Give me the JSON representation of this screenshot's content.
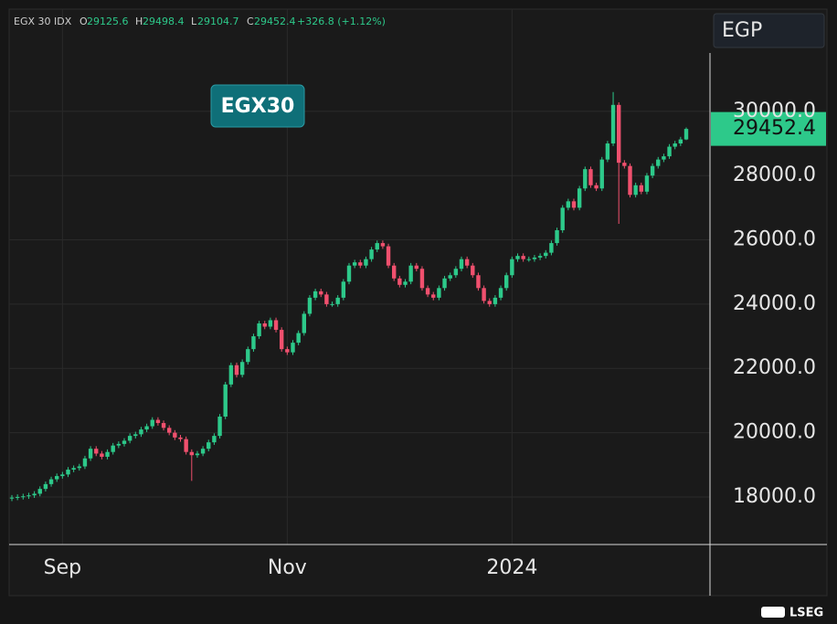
{
  "chart_data": {
    "type": "candlestick",
    "ticker": "EGX 30 IDX",
    "legend_keys": [
      "O",
      "H",
      "L",
      "C"
    ],
    "change": "+326.8 (+1.12%)",
    "currency": "EGP",
    "badge": "EGX30",
    "source": "LSEG",
    "up_color": "#2dc98a",
    "down_color": "#f0506e",
    "categories": [
      null,
      null,
      null,
      null,
      null,
      null,
      null,
      null,
      null,
      "Sep",
      null,
      null,
      null,
      null,
      null,
      null,
      null,
      null,
      null,
      null,
      null,
      null,
      null,
      null,
      null,
      null,
      null,
      null,
      null,
      null,
      null,
      null,
      null,
      null,
      null,
      null,
      null,
      null,
      null,
      null,
      null,
      null,
      null,
      null,
      null,
      null,
      null,
      null,
      null,
      "Nov",
      null,
      null,
      null,
      null,
      null,
      null,
      null,
      null,
      null,
      null,
      null,
      null,
      null,
      null,
      null,
      null,
      null,
      null,
      null,
      null,
      null,
      null,
      null,
      null,
      null,
      null,
      null,
      null,
      null,
      null,
      null,
      null,
      null,
      null,
      null,
      null,
      null,
      null,
      null,
      "2024",
      null,
      null,
      null,
      null,
      null,
      null,
      null,
      null,
      null,
      null,
      null,
      null,
      null,
      null,
      null,
      null,
      null,
      null,
      null,
      null,
      null,
      null,
      null,
      null,
      null,
      null,
      null,
      null,
      null,
      null,
      null
    ],
    "open": [
      17950,
      17980,
      18000,
      18020,
      18050,
      18100,
      18250,
      18400,
      18550,
      18650,
      18700,
      18850,
      18900,
      18950,
      19200,
      19500,
      19350,
      19250,
      19400,
      19600,
      19650,
      19750,
      19900,
      19950,
      20100,
      20200,
      20400,
      20300,
      20150,
      20000,
      19850,
      19800,
      19400,
      19300,
      19350,
      19500,
      19700,
      19900,
      20500,
      21500,
      22100,
      21800,
      22200,
      22600,
      23000,
      23400,
      23300,
      23500,
      23200,
      22600,
      22500,
      22800,
      23100,
      23700,
      24200,
      24400,
      24300,
      24000,
      24000,
      24200,
      24700,
      25200,
      25300,
      25200,
      25400,
      25700,
      25900,
      25800,
      25200,
      24800,
      24600,
      24700,
      25200,
      25100,
      24500,
      24300,
      24200,
      24500,
      24800,
      24900,
      25100,
      25400,
      25200,
      24900,
      24500,
      24100,
      24000,
      24200,
      24500,
      24900,
      25400,
      25500,
      25400,
      25400,
      25450,
      25500,
      25600,
      25900,
      26300,
      27000,
      27200,
      27000,
      27600,
      28200,
      27700,
      27600,
      28500,
      29000,
      30200,
      28400,
      28300,
      27400,
      27700,
      27500,
      28000,
      28300,
      28500,
      28600,
      28900,
      29000,
      29125.6
    ],
    "high": [
      18060,
      18080,
      18100,
      18130,
      18180,
      18330,
      18480,
      18630,
      18730,
      18780,
      18930,
      18980,
      19030,
      19280,
      19580,
      19580,
      19430,
      19480,
      19680,
      19730,
      19830,
      19980,
      20030,
      20180,
      20280,
      20480,
      20480,
      20380,
      20230,
      20080,
      19930,
      19880,
      19480,
      19430,
      19580,
      19780,
      19980,
      20580,
      21580,
      22180,
      22180,
      22280,
      22680,
      23080,
      23480,
      23480,
      23580,
      23580,
      23280,
      22680,
      22880,
      23180,
      23780,
      24280,
      24480,
      24480,
      24380,
      24080,
      24280,
      24780,
      25280,
      25380,
      25380,
      25480,
      25780,
      25980,
      25980,
      25880,
      25280,
      24880,
      24780,
      25280,
      25280,
      25180,
      24580,
      24380,
      24580,
      24880,
      24980,
      25180,
      25480,
      25480,
      25280,
      24980,
      24580,
      24180,
      24280,
      24580,
      24980,
      25480,
      25580,
      25580,
      25480,
      25530,
      25580,
      25680,
      25980,
      26380,
      27080,
      27280,
      27280,
      27680,
      28280,
      28280,
      27780,
      28580,
      29080,
      30600,
      30280,
      28480,
      28380,
      27780,
      27780,
      28080,
      28380,
      28580,
      28680,
      28980,
      29080,
      29206,
      29498.4
    ],
    "low": [
      17870,
      17900,
      17920,
      17940,
      17970,
      18020,
      18170,
      18320,
      18470,
      18570,
      18620,
      18770,
      18820,
      18870,
      19120,
      19270,
      19170,
      19170,
      19320,
      19520,
      19570,
      19670,
      19820,
      19870,
      20020,
      20120,
      20220,
      20070,
      19920,
      19770,
      19720,
      19320,
      18500,
      19220,
      19270,
      19420,
      19620,
      19820,
      20420,
      21420,
      21720,
      21720,
      22120,
      22520,
      22920,
      23220,
      23220,
      23120,
      22520,
      22420,
      22420,
      22720,
      23020,
      23620,
      24120,
      24220,
      23920,
      23920,
      23920,
      24120,
      24620,
      25120,
      25120,
      25120,
      25320,
      25620,
      25720,
      25120,
      24720,
      24520,
      24520,
      24620,
      25020,
      24420,
      24220,
      24120,
      24120,
      24420,
      24720,
      24820,
      25020,
      25120,
      24820,
      24420,
      24020,
      23920,
      23920,
      24120,
      24420,
      24820,
      25320,
      25320,
      25320,
      25320,
      25370,
      25420,
      25520,
      25820,
      26220,
      26920,
      26920,
      26920,
      27520,
      27620,
      27520,
      27520,
      28420,
      28920,
      26500,
      28220,
      27320,
      27320,
      27420,
      27420,
      27920,
      28220,
      28420,
      28520,
      28820,
      28920,
      29104.7
    ],
    "close": [
      17980,
      18000,
      18020,
      18050,
      18100,
      18250,
      18400,
      18550,
      18650,
      18700,
      18850,
      18900,
      18950,
      19200,
      19500,
      19350,
      19250,
      19400,
      19600,
      19650,
      19750,
      19900,
      19950,
      20100,
      20200,
      20400,
      20300,
      20150,
      20000,
      19850,
      19800,
      19400,
      19300,
      19350,
      19500,
      19700,
      19900,
      20500,
      21500,
      22100,
      21800,
      22200,
      22600,
      23000,
      23400,
      23300,
      23500,
      23200,
      22600,
      22500,
      22800,
      23100,
      23700,
      24200,
      24400,
      24300,
      24000,
      24000,
      24200,
      24700,
      25200,
      25300,
      25200,
      25400,
      25700,
      25900,
      25800,
      25200,
      24800,
      24600,
      24700,
      25200,
      25100,
      24500,
      24300,
      24200,
      24500,
      24800,
      24900,
      25100,
      25400,
      25200,
      24900,
      24500,
      24100,
      24000,
      24200,
      24500,
      24900,
      25400,
      25500,
      25400,
      25400,
      25450,
      25500,
      25600,
      25900,
      26300,
      27000,
      27200,
      27000,
      27600,
      28200,
      27700,
      27600,
      28500,
      29000,
      30200,
      28400,
      28300,
      27400,
      27700,
      27500,
      28000,
      28300,
      28500,
      28600,
      28900,
      29000,
      29126,
      29452.4
    ],
    "ylim": [
      16520,
      33180
    ],
    "yticks": [
      {
        "value": 18000,
        "label": "18000.0"
      },
      {
        "value": 20000,
        "label": "20000.0"
      },
      {
        "value": 22000,
        "label": "22000.0"
      },
      {
        "value": 24000,
        "label": "24000.0"
      },
      {
        "value": 26000,
        "label": "26000.0"
      },
      {
        "value": 28000,
        "label": "28000.0"
      },
      {
        "value": 30000,
        "label": "30000.0"
      }
    ],
    "grid": true
  }
}
